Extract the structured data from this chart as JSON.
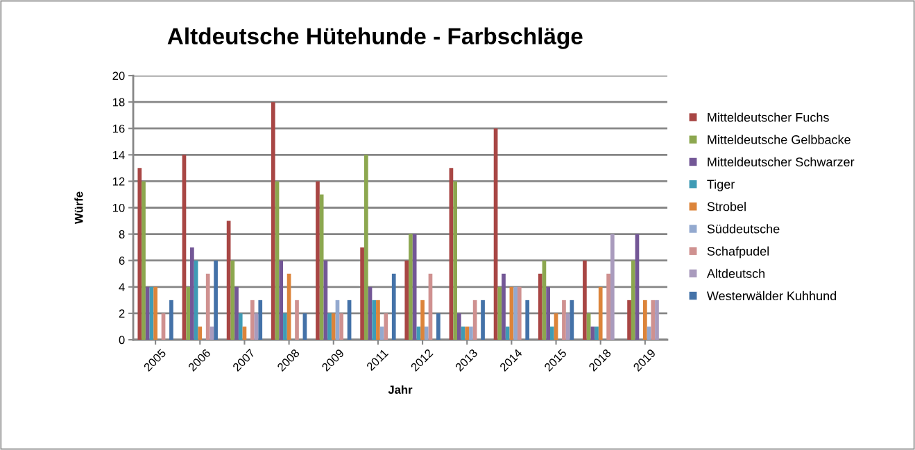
{
  "chart_data": {
    "type": "bar",
    "title": "Altdeutsche Hütehunde - Farbschläge",
    "xlabel": "Jahr",
    "ylabel": "Würfe",
    "categories": [
      "2005",
      "2006",
      "2007",
      "2008",
      "2009",
      "2011",
      "2012",
      "2013",
      "2014",
      "2015",
      "2018",
      "2019"
    ],
    "series": [
      {
        "name": "Mitteldeutscher Fuchs",
        "color": "#a84644",
        "values": [
          13,
          14,
          9,
          18,
          12,
          7,
          6,
          13,
          16,
          5,
          6,
          3
        ]
      },
      {
        "name": "Mitteldeutsche Gelbbacke",
        "color": "#8ca74f",
        "values": [
          12,
          4,
          6,
          12,
          11,
          14,
          8,
          12,
          4,
          6,
          2,
          6
        ]
      },
      {
        "name": "Mitteldeutscher Schwarzer",
        "color": "#735796",
        "values": [
          4,
          7,
          4,
          6,
          6,
          4,
          8,
          2,
          5,
          4,
          1,
          8
        ]
      },
      {
        "name": "Tiger",
        "color": "#3f9bb5",
        "values": [
          4,
          6,
          2,
          2,
          2,
          3,
          1,
          1,
          1,
          1,
          1,
          0
        ]
      },
      {
        "name": "Strobel",
        "color": "#dc843a",
        "values": [
          4,
          1,
          1,
          5,
          2,
          3,
          3,
          1,
          4,
          2,
          4,
          3
        ]
      },
      {
        "name": "Süddeutsche",
        "color": "#93a9cf",
        "values": [
          0,
          0,
          0,
          0,
          3,
          1,
          1,
          1,
          4,
          0,
          0,
          1
        ]
      },
      {
        "name": "Schafpudel",
        "color": "#cf9190",
        "values": [
          2,
          5,
          3,
          3,
          2,
          2,
          5,
          3,
          4,
          3,
          5,
          3
        ]
      },
      {
        "name": "Altdeutsch",
        "color": "#a99bbd",
        "values": [
          0,
          1,
          2,
          0,
          0,
          0,
          0,
          0,
          0,
          2,
          8,
          3
        ]
      },
      {
        "name": "Westerwälder Kuhhund",
        "color": "#4472a8",
        "values": [
          3,
          6,
          3,
          2,
          3,
          5,
          2,
          3,
          3,
          3,
          0,
          0
        ]
      }
    ],
    "ylim": [
      0,
      20
    ],
    "yticks": [
      0,
      2,
      4,
      6,
      8,
      10,
      12,
      14,
      16,
      18,
      20
    ],
    "grid": "y",
    "legend": "right"
  }
}
